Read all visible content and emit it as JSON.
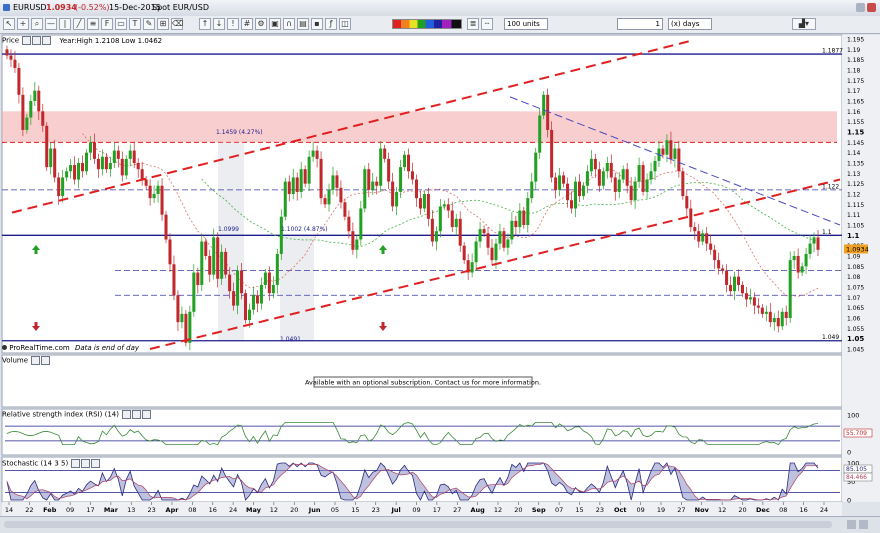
{
  "window": {
    "title": "EURUSD",
    "price": "1.0934",
    "change": "(-0.52%)",
    "date": "15-Dec-2015",
    "spot": "Spot EUR/USD"
  },
  "toolbar": {
    "units_value": "100 units",
    "period_value": "1",
    "period_unit": "(x) days"
  },
  "panels": {
    "price_title": "Price",
    "year_info": "Year:High 1.2108 Low 1.0462",
    "watermark": "ProRealTime.com",
    "eod_note": "Data is end of day",
    "volume_title": "Volume",
    "volume_message": "Available with an optional subscription. Contact us for more information.",
    "rsi_title": "Relative strength index (RSI) (14)",
    "stoch_title": "Stochastic (14 3 5)"
  },
  "colors": {
    "bull": "#22a022",
    "bear": "#c0282c",
    "trend": "#e02020",
    "navy": "#1c1c8c",
    "zone": "#f4a6a6"
  },
  "chart_data": {
    "type": "candlestick",
    "instrument": "EUR/USD",
    "x_ticks": [
      "14",
      "22",
      "Feb",
      "09",
      "17",
      "Mar",
      "13",
      "23",
      "Apr",
      "08",
      "16",
      "24",
      "May",
      "12",
      "20",
      "Jun",
      "05",
      "15",
      "23",
      "Jul",
      "09",
      "17",
      "27",
      "Aug",
      "12",
      "20",
      "Sep",
      "07",
      "15",
      "23",
      "Oct",
      "09",
      "19",
      "27",
      "Nov",
      "12",
      "20",
      "Dec",
      "08",
      "16",
      "24"
    ],
    "price_axis": {
      "ylim": [
        1.045,
        1.195
      ],
      "ticks": [
        "1.195",
        "1.19",
        "1.185",
        "1.18",
        "1.175",
        "1.17",
        "1.165",
        "1.16",
        "1.155",
        "1.15",
        "1.145",
        "1.14",
        "1.135",
        "1.13",
        "1.125",
        "1.12",
        "1.115",
        "1.11",
        "1.105",
        "1.1",
        "1.095",
        "1.09",
        "1.085",
        "1.08",
        "1.075",
        "1.07",
        "1.065",
        "1.06",
        "1.055",
        "1.05",
        "1.045"
      ],
      "bold_ticks": [
        "1.15",
        "1.1",
        "1.05"
      ]
    },
    "price_labels": [
      "1.1877",
      "1.122",
      "1.1",
      "1.0934",
      "1.049"
    ],
    "annotations": [
      "1.1459 (4.27%)",
      "1.0999",
      "1.1002 (4.87%)",
      "1.0491"
    ],
    "horizontal_levels": [
      {
        "value": 1.1877,
        "style": "solid"
      },
      {
        "value": 1.122,
        "style": "dashed"
      },
      {
        "value": 1.1,
        "style": "solid"
      },
      {
        "value": 1.083,
        "style": "dashed"
      },
      {
        "value": 1.071,
        "style": "dashed"
      },
      {
        "value": 1.049,
        "style": "solid"
      }
    ],
    "resistance_zone": [
      1.145,
      1.16
    ],
    "series": [
      {
        "name": "Close",
        "values": [
          1.187,
          1.185,
          1.181,
          1.168,
          1.151,
          1.157,
          1.165,
          1.17,
          1.16,
          1.153,
          1.133,
          1.142,
          1.128,
          1.119,
          1.128,
          1.131,
          1.134,
          1.127,
          1.135,
          1.131,
          1.14,
          1.145,
          1.137,
          1.132,
          1.138,
          1.132,
          1.135,
          1.141,
          1.137,
          1.129,
          1.137,
          1.141,
          1.135,
          1.132,
          1.127,
          1.124,
          1.118,
          1.12,
          1.124,
          1.11,
          1.098,
          1.086,
          1.071,
          1.058,
          1.062,
          1.048,
          1.063,
          1.082,
          1.076,
          1.097,
          1.09,
          1.081,
          1.099,
          1.079,
          1.092,
          1.081,
          1.073,
          1.066,
          1.083,
          1.072,
          1.059,
          1.064,
          1.071,
          1.067,
          1.076,
          1.082,
          1.072,
          1.076,
          1.091,
          1.109,
          1.126,
          1.12,
          1.128,
          1.121,
          1.132,
          1.125,
          1.138,
          1.141,
          1.137,
          1.118,
          1.115,
          1.122,
          1.129,
          1.123,
          1.116,
          1.109,
          1.102,
          1.093,
          1.098,
          1.113,
          1.132,
          1.122,
          1.126,
          1.124,
          1.142,
          1.137,
          1.126,
          1.114,
          1.121,
          1.133,
          1.139,
          1.131,
          1.127,
          1.118,
          1.113,
          1.12,
          1.108,
          1.097,
          1.102,
          1.114,
          1.115,
          1.112,
          1.104,
          1.108,
          1.095,
          1.088,
          1.082,
          1.087,
          1.097,
          1.103,
          1.101,
          1.094,
          1.088,
          1.096,
          1.102,
          1.094,
          1.098,
          1.107,
          1.104,
          1.112,
          1.105,
          1.118,
          1.126,
          1.14,
          1.158,
          1.168,
          1.151,
          1.128,
          1.122,
          1.129,
          1.125,
          1.117,
          1.113,
          1.126,
          1.119,
          1.124,
          1.131,
          1.137,
          1.132,
          1.124,
          1.131,
          1.135,
          1.128,
          1.121,
          1.127,
          1.132,
          1.124,
          1.117,
          1.126,
          1.134,
          1.121,
          1.127,
          1.131,
          1.136,
          1.142,
          1.139,
          1.146,
          1.137,
          1.142,
          1.131,
          1.119,
          1.113,
          1.104,
          1.102,
          1.097,
          1.101,
          1.096,
          1.093,
          1.088,
          1.084,
          1.083,
          1.076,
          1.073,
          1.08,
          1.076,
          1.072,
          1.069,
          1.07,
          1.066,
          1.065,
          1.062,
          1.063,
          1.058,
          1.06,
          1.056,
          1.063,
          1.06,
          1.088,
          1.09,
          1.082,
          1.085,
          1.091,
          1.096,
          1.099,
          1.093
        ]
      }
    ],
    "rsi": {
      "ylim": [
        0,
        100
      ],
      "ticks": [
        "100",
        "50",
        "0"
      ],
      "current": "55.709"
    },
    "stochastic": {
      "ylim": [
        0,
        100
      ],
      "ticks": [
        "100",
        "50",
        "0"
      ],
      "current": [
        "85.105",
        "84.466"
      ]
    }
  }
}
